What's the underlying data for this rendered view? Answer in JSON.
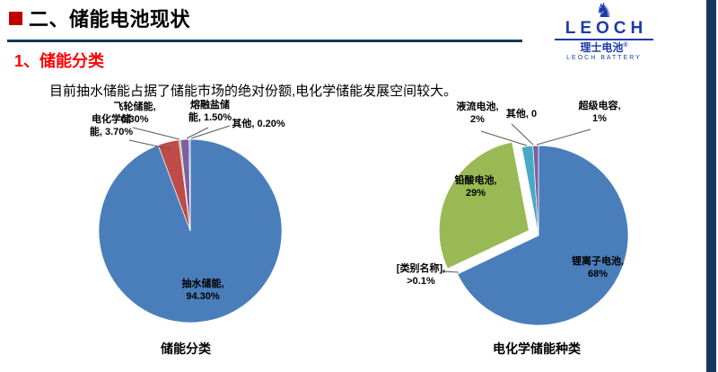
{
  "slide": {
    "title": "二、储能电池现状",
    "section_heading": "1、储能分类",
    "body_text": "目前抽水储能占据了储能市场的绝对份额,电化学储能发展空间较大。",
    "colors": {
      "bullet_red": "#C00000",
      "heading_red": "#FF0000",
      "rule_navy": "#17375E",
      "sidebar_navy": "#17375E"
    }
  },
  "logo": {
    "wordmark": "LEOCH",
    "cn_name": "理士电池",
    "reg_mark": "®",
    "subtitle": "LEOCH BATTERY",
    "color": "#1C3BA8"
  },
  "chart_data": [
    {
      "type": "pie",
      "title": "储能分类",
      "legend": "none",
      "categories": [
        "抽水储能",
        "电化学储能",
        "飞轮储能",
        "熔融盐储能",
        "其他"
      ],
      "values": [
        94.3,
        3.7,
        0.3,
        1.5,
        0.2
      ],
      "colors": [
        "#4A7EBB",
        "#BE4B48",
        "#98B954",
        "#7D60A0",
        "#46AAC5"
      ],
      "explode": [
        0,
        0,
        0,
        0,
        0
      ],
      "labels": {
        "flywheel": "飞轮储能,\n0.30%",
        "electrochemical": "电化学储\n能, 3.70%",
        "molten_salt": "熔融盐储\n能, 1.50%",
        "other": "其他, 0.20%",
        "pumped": "抽水储能,\n94.30%"
      }
    },
    {
      "type": "pie",
      "title": "电化学储能种类",
      "legend": "none",
      "categories": [
        "锂离子电池",
        "[类别名称]",
        "铅酸电池",
        "液流电池",
        "其他",
        "超级电容"
      ],
      "values": [
        68,
        0.1,
        29,
        2,
        0,
        1
      ],
      "colors": [
        "#4A7EBB",
        "#BE4B48",
        "#98B954",
        "#46AAC5",
        "#BE4B48",
        "#7D60A0"
      ],
      "explode": [
        0,
        0,
        12,
        0,
        0,
        0
      ],
      "labels": {
        "flow": "液流电池,\n2%",
        "other": "其他, 0",
        "supercap": "超级电容,\n1%",
        "lead_acid": "铅酸电池,\n29%",
        "lithium": "锂离子电池,\n68%",
        "category_placeholder": "[类别名称],\n>0.1%"
      }
    }
  ]
}
